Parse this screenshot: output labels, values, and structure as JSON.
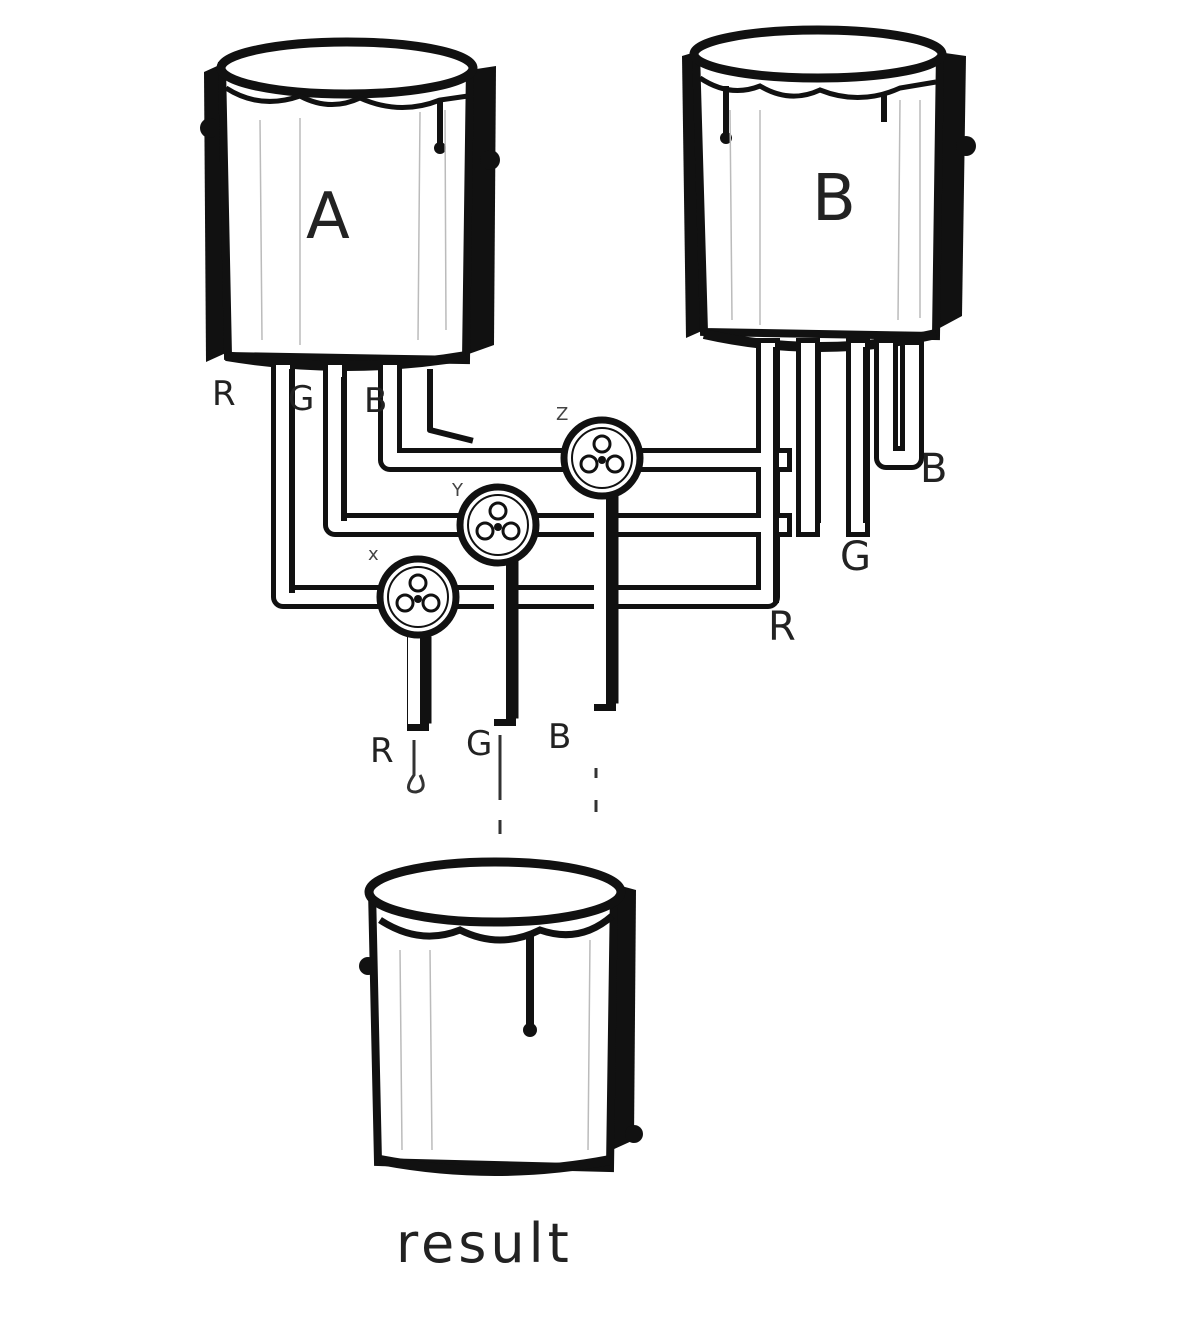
{
  "buckets": {
    "a": {
      "label": "A"
    },
    "b": {
      "label": "B"
    },
    "result": {
      "label": "result"
    }
  },
  "pipe_labels": {
    "a_r": "R",
    "a_g": "G",
    "a_b": "B",
    "b_b": "B",
    "b_g": "G",
    "b_r": "R"
  },
  "valve_labels": {
    "x": "x",
    "y": "Y",
    "z": "Z"
  },
  "outlet_labels": {
    "r": "R",
    "g": "G",
    "b": "B"
  }
}
